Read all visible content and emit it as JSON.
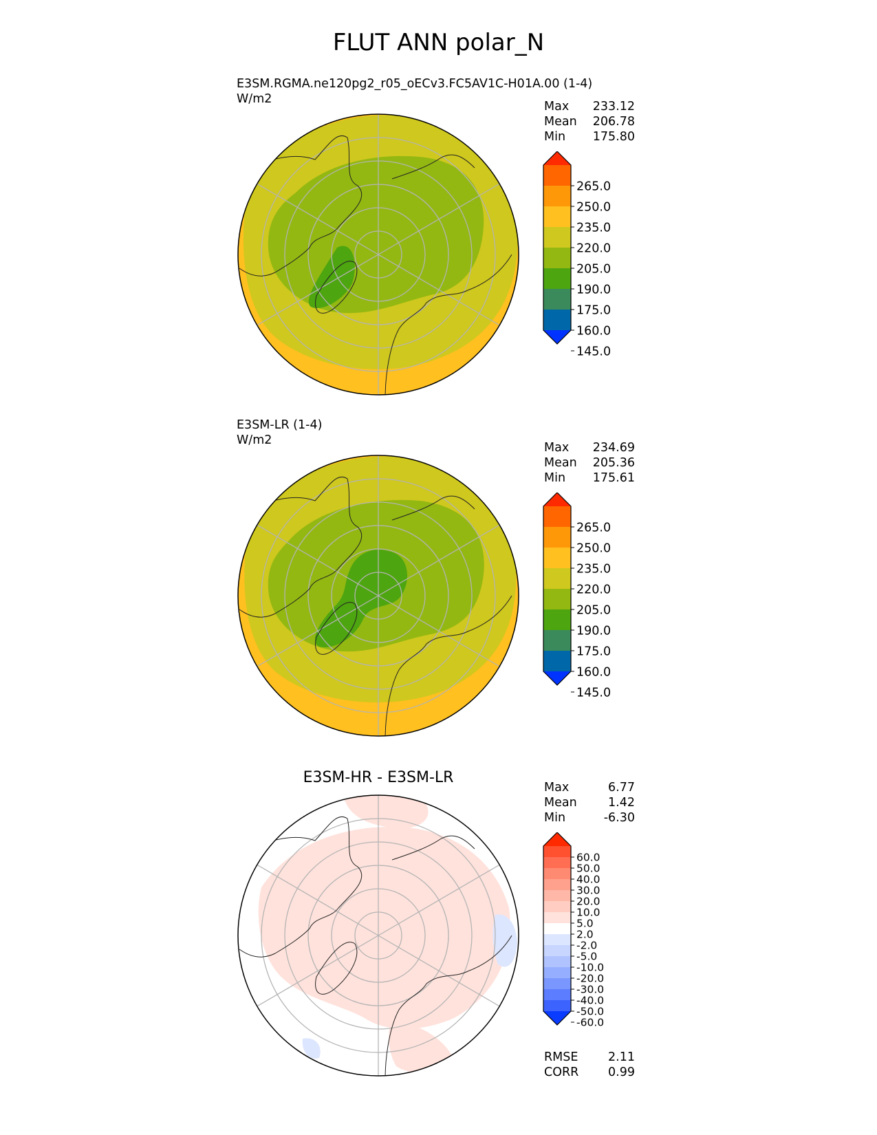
{
  "title": "FLUT ANN polar_N",
  "colors": {
    "main_levels": [
      "#0033ff",
      "#0068a8",
      "#3a8a5c",
      "#4da510",
      "#93b812",
      "#cfc81e",
      "#ffc020",
      "#ff9808",
      "#ff6600",
      "#ff2a00"
    ],
    "diff_levels": [
      "#0a3cff",
      "#3d63ff",
      "#5c7dff",
      "#7a97ff",
      "#95aeff",
      "#b0c3ff",
      "#c8d6ff",
      "#dde6ff",
      "#ffffff",
      "#ffe2dc",
      "#ffcdc2",
      "#ffb8a8",
      "#ffa18c",
      "#ff8a72",
      "#ff6e52",
      "#ff5030",
      "#ff2a00"
    ]
  },
  "chart_data": [
    {
      "type": "heatmap",
      "projection": "north polar stereographic",
      "title_line1": "E3SM.RGMA.ne120pg2_r05_oECv3.FC5AV1C-H01A.00 (1-4)",
      "title_line2": "W/m2",
      "stats": [
        {
          "label": "Max",
          "value": "233.12"
        },
        {
          "label": "Mean",
          "value": "206.78"
        },
        {
          "label": "Min",
          "value": "175.80"
        }
      ],
      "colorbar": {
        "ticks": [
          "265.0",
          "250.0",
          "235.0",
          "220.0",
          "205.0",
          "190.0",
          "175.0",
          "160.0",
          "145.0"
        ]
      }
    },
    {
      "type": "heatmap",
      "projection": "north polar stereographic",
      "title_line1": "E3SM-LR (1-4)",
      "title_line2": "W/m2",
      "stats": [
        {
          "label": "Max",
          "value": "234.69"
        },
        {
          "label": "Mean",
          "value": "205.36"
        },
        {
          "label": "Min",
          "value": "175.61"
        }
      ],
      "colorbar": {
        "ticks": [
          "265.0",
          "250.0",
          "235.0",
          "220.0",
          "205.0",
          "190.0",
          "175.0",
          "160.0",
          "145.0"
        ]
      }
    },
    {
      "type": "heatmap",
      "projection": "north polar stereographic",
      "title": "E3SM-HR - E3SM-LR",
      "stats": [
        {
          "label": "Max",
          "value": "6.77"
        },
        {
          "label": "Mean",
          "value": "1.42"
        },
        {
          "label": "Min",
          "value": "-6.30"
        }
      ],
      "colorbar": {
        "ticks": [
          "60.0",
          "50.0",
          "40.0",
          "30.0",
          "20.0",
          "10.0",
          "5.0",
          "2.0",
          "-2.0",
          "-5.0",
          "-10.0",
          "-20.0",
          "-30.0",
          "-40.0",
          "-50.0",
          "-60.0"
        ]
      },
      "metrics": [
        {
          "label": "RMSE",
          "value": "2.11"
        },
        {
          "label": "CORR",
          "value": "0.99"
        }
      ]
    }
  ]
}
